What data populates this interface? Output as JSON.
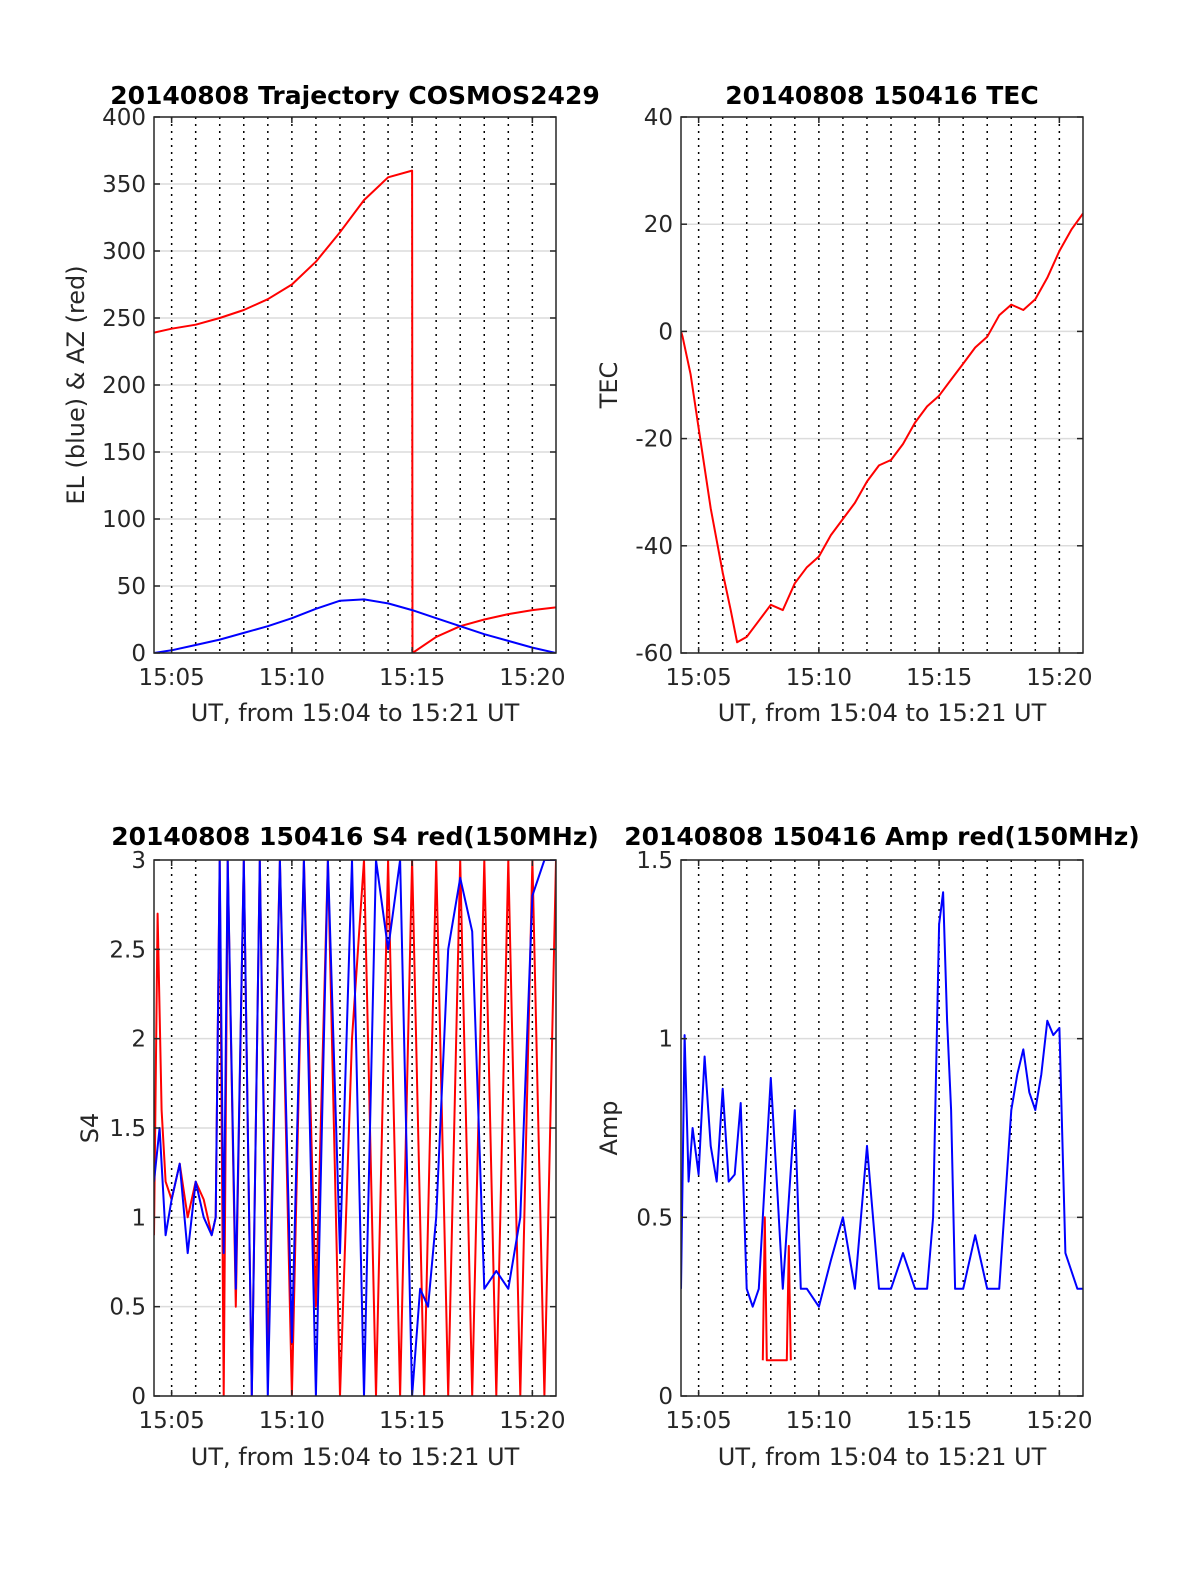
{
  "figure": {
    "background": "#ffffff"
  },
  "colors": {
    "red": "#ff0000",
    "blue": "#0000ff",
    "grid": "#dcdcdc",
    "dotted_grid": "#000000"
  },
  "chart_data": [
    {
      "id": "trajectory",
      "type": "line",
      "title": "20140808 Trajectory COSMOS2429",
      "xlabel": "UT, from 15:04 to 15:21 UT",
      "ylabel": "EL (blue) & AZ (red)",
      "xlim": [
        "15:04:16",
        "15:20:59"
      ],
      "ylim": [
        0,
        400
      ],
      "yticks": [
        "0",
        "50",
        "100",
        "150",
        "200",
        "250",
        "300",
        "350",
        "400"
      ],
      "ytick_values": [
        0,
        50,
        100,
        150,
        200,
        250,
        300,
        350,
        400
      ],
      "xticks": [
        "15:05",
        "15:10",
        "15:15",
        "15:20"
      ],
      "grid": {
        "horizontal": "solid",
        "vertical": "dotted",
        "vertical_every_minutes": 1
      },
      "series": [
        {
          "color": "red",
          "x": [
            "15:04:16",
            "15:05:00",
            "15:06:00",
            "15:07:00",
            "15:08:00",
            "15:09:00",
            "15:10:00",
            "15:11:00",
            "15:12:00",
            "15:13:00",
            "15:14:00",
            "15:15:00",
            "15:15:01",
            "15:16:00",
            "15:17:00",
            "15:18:00",
            "15:19:00",
            "15:20:00",
            "15:20:59"
          ],
          "y": [
            239,
            242,
            245,
            250,
            256,
            264,
            275,
            292,
            314,
            338,
            355,
            360,
            0,
            12,
            20,
            25,
            29,
            32,
            34
          ]
        },
        {
          "color": "blue",
          "x": [
            "15:04:16",
            "15:05:00",
            "15:06:00",
            "15:07:00",
            "15:08:00",
            "15:09:00",
            "15:10:00",
            "15:11:00",
            "15:12:00",
            "15:13:00",
            "15:14:00",
            "15:15:00",
            "15:16:00",
            "15:17:00",
            "15:18:00",
            "15:19:00",
            "15:20:00",
            "15:20:59"
          ],
          "y": [
            0,
            2,
            6,
            10,
            15,
            20,
            26,
            33,
            39,
            40,
            37,
            32,
            26,
            20,
            14,
            9,
            4,
            0
          ]
        }
      ]
    },
    {
      "id": "tec",
      "type": "line",
      "title": "20140808 150416 TEC",
      "xlabel": "UT, from 15:04 to 15:21 UT",
      "ylabel": "TEC",
      "xlim": [
        "15:04:16",
        "15:20:59"
      ],
      "ylim": [
        -60,
        40
      ],
      "yticks": [
        "-60",
        "-40",
        "-20",
        "0",
        "20",
        "40"
      ],
      "ytick_values": [
        -60,
        -40,
        -20,
        0,
        20,
        40
      ],
      "xticks": [
        "15:05",
        "15:10",
        "15:15",
        "15:20"
      ],
      "grid": {
        "horizontal": "solid",
        "vertical": "dotted",
        "vertical_every_minutes": 1
      },
      "series": [
        {
          "color": "red",
          "x": [
            "15:04:16",
            "15:04:20",
            "15:04:40",
            "15:05:00",
            "15:05:30",
            "15:06:00",
            "15:06:20",
            "15:06:36",
            "15:07:00",
            "15:07:30",
            "15:08:00",
            "15:08:30",
            "15:09:00",
            "15:09:30",
            "15:10:00",
            "15:10:30",
            "15:11:00",
            "15:11:30",
            "15:12:00",
            "15:12:30",
            "15:13:00",
            "15:13:30",
            "15:14:00",
            "15:14:30",
            "15:15:00",
            "15:15:30",
            "15:16:00",
            "15:16:30",
            "15:17:00",
            "15:17:30",
            "15:18:00",
            "15:18:30",
            "15:19:00",
            "15:19:30",
            "15:20:00",
            "15:20:30",
            "15:20:59"
          ],
          "y": [
            0,
            -1,
            -8,
            -18,
            -33,
            -45,
            -52,
            -58,
            -57,
            -54,
            -51,
            -52,
            -47,
            -44,
            -42,
            -38,
            -35,
            -32,
            -28,
            -25,
            -24,
            -21,
            -17,
            -14,
            -12,
            -9,
            -6,
            -3,
            -1,
            3,
            5,
            4,
            6,
            10,
            15,
            19,
            22
          ]
        }
      ]
    },
    {
      "id": "s4",
      "type": "line",
      "title": "20140808 150416 S4 red(150MHz)",
      "xlabel": "UT, from 15:04 to 15:21 UT",
      "ylabel": "S4",
      "xlim": [
        "15:04:16",
        "15:20:59"
      ],
      "ylim": [
        0,
        3
      ],
      "yticks": [
        "0",
        "0.5",
        "1",
        "1.5",
        "2",
        "2.5",
        "3"
      ],
      "ytick_values": [
        0,
        0.5,
        1,
        1.5,
        2,
        2.5,
        3
      ],
      "xticks": [
        "15:05",
        "15:10",
        "15:15",
        "15:20"
      ],
      "grid": {
        "horizontal": "solid",
        "vertical": "dotted",
        "vertical_every_minutes": 1
      },
      "series": [
        {
          "color": "red",
          "x": [
            "15:04:16",
            "15:04:25",
            "15:04:35",
            "15:04:45",
            "15:05:00",
            "15:05:20",
            "15:05:40",
            "15:06:00",
            "15:06:20",
            "15:06:40",
            "15:06:50",
            "15:07:00",
            "15:07:10",
            "15:07:20",
            "15:07:40",
            "15:08:00",
            "15:08:20",
            "15:08:40",
            "15:09:00",
            "15:09:30",
            "15:10:00",
            "15:10:30",
            "15:11:00",
            "15:11:30",
            "15:12:00",
            "15:12:30",
            "15:13:00",
            "15:13:30",
            "15:14:00",
            "15:14:30",
            "15:15:00",
            "15:15:30",
            "15:16:00",
            "15:16:30",
            "15:17:00",
            "15:17:30",
            "15:18:00",
            "15:18:30",
            "15:19:00",
            "15:19:30",
            "15:20:00",
            "15:20:30",
            "15:20:59"
          ],
          "y": [
            0.9,
            2.7,
            1.6,
            1.2,
            1.1,
            1.3,
            1.0,
            1.2,
            1.1,
            0.9,
            1.0,
            3.0,
            0.0,
            3.0,
            0.5,
            3.0,
            0.0,
            3.0,
            0.2,
            3.0,
            0.0,
            3.0,
            0.5,
            3.0,
            0.0,
            2.0,
            3.0,
            0.0,
            3.0,
            0.0,
            3.0,
            0.0,
            3.0,
            0.0,
            3.0,
            0.0,
            3.0,
            0.0,
            3.0,
            0.0,
            3.0,
            0.0,
            3.0
          ]
        },
        {
          "color": "blue",
          "x": [
            "15:04:16",
            "15:04:30",
            "15:04:45",
            "15:05:00",
            "15:05:20",
            "15:05:40",
            "15:06:00",
            "15:06:20",
            "15:06:40",
            "15:06:50",
            "15:07:00",
            "15:07:10",
            "15:07:20",
            "15:07:40",
            "15:08:00",
            "15:08:20",
            "15:08:40",
            "15:09:00",
            "15:09:30",
            "15:10:00",
            "15:10:30",
            "15:11:00",
            "15:11:30",
            "15:12:00",
            "15:12:30",
            "15:13:00",
            "15:13:30",
            "15:14:00",
            "15:14:30",
            "15:15:00",
            "15:15:20",
            "15:15:40",
            "15:16:00",
            "15:16:30",
            "15:17:00",
            "15:17:30",
            "15:18:00",
            "15:18:30",
            "15:19:00",
            "15:19:30",
            "15:20:00",
            "15:20:30",
            "15:20:59"
          ],
          "y": [
            1.2,
            1.5,
            0.9,
            1.1,
            1.3,
            0.8,
            1.2,
            1.0,
            0.9,
            1.0,
            3.0,
            0.8,
            3.0,
            0.6,
            3.0,
            0.0,
            3.0,
            0.0,
            3.0,
            0.3,
            3.0,
            0.0,
            3.0,
            0.8,
            3.0,
            0.0,
            3.0,
            2.5,
            3.0,
            0.0,
            0.6,
            0.5,
            1.0,
            2.5,
            2.9,
            2.6,
            0.6,
            0.7,
            0.6,
            1.0,
            2.8,
            3.0,
            3.0
          ]
        }
      ]
    },
    {
      "id": "amp",
      "type": "line",
      "title": "20140808 150416 Amp red(150MHz)",
      "xlabel": "UT, from 15:04 to 15:21 UT",
      "ylabel": "Amp",
      "xlim": [
        "15:04:16",
        "15:20:59"
      ],
      "ylim": [
        0,
        1.5
      ],
      "yticks": [
        "0",
        "0.5",
        "1",
        "1.5"
      ],
      "ytick_values": [
        0,
        0.5,
        1,
        1.5
      ],
      "xticks": [
        "15:05",
        "15:10",
        "15:15",
        "15:20"
      ],
      "grid": {
        "horizontal": "solid",
        "vertical": "dotted",
        "vertical_every_minutes": 1
      },
      "series": [
        {
          "color": "red",
          "x": [
            "15:07:40",
            "15:07:45",
            "15:07:50",
            "15:08:40",
            "15:08:45",
            "15:08:50"
          ],
          "y": [
            0.1,
            0.5,
            0.1,
            0.1,
            0.42,
            0.1
          ]
        },
        {
          "color": "blue",
          "x": [
            "15:04:16",
            "15:04:25",
            "15:04:35",
            "15:04:45",
            "15:05:00",
            "15:05:15",
            "15:05:30",
            "15:05:45",
            "15:06:00",
            "15:06:15",
            "15:06:30",
            "15:06:45",
            "15:07:00",
            "15:07:15",
            "15:07:30",
            "15:07:45",
            "15:08:00",
            "15:08:15",
            "15:08:30",
            "15:08:45",
            "15:09:00",
            "15:09:15",
            "15:09:30",
            "15:10:00",
            "15:10:30",
            "15:11:00",
            "15:11:30",
            "15:12:00",
            "15:12:15",
            "15:12:30",
            "15:13:00",
            "15:13:30",
            "15:14:00",
            "15:14:30",
            "15:14:45",
            "15:15:00",
            "15:15:10",
            "15:15:20",
            "15:15:30",
            "15:15:40",
            "15:15:50",
            "15:16:00",
            "15:16:30",
            "15:17:00",
            "15:17:30",
            "15:18:00",
            "15:18:15",
            "15:18:30",
            "15:18:45",
            "15:19:00",
            "15:19:15",
            "15:19:30",
            "15:19:45",
            "15:20:00",
            "15:20:15",
            "15:20:30",
            "15:20:45",
            "15:20:59"
          ],
          "y": [
            0.3,
            1.01,
            0.6,
            0.75,
            0.62,
            0.95,
            0.7,
            0.6,
            0.86,
            0.6,
            0.62,
            0.82,
            0.3,
            0.25,
            0.3,
            0.6,
            0.89,
            0.6,
            0.3,
            0.55,
            0.8,
            0.3,
            0.3,
            0.25,
            0.38,
            0.5,
            0.3,
            0.7,
            0.5,
            0.3,
            0.3,
            0.4,
            0.3,
            0.3,
            0.5,
            1.32,
            1.41,
            1.05,
            0.8,
            0.3,
            0.3,
            0.3,
            0.45,
            0.3,
            0.3,
            0.8,
            0.9,
            0.97,
            0.85,
            0.8,
            0.9,
            1.05,
            1.01,
            1.03,
            0.4,
            0.35,
            0.3,
            0.3
          ]
        }
      ]
    }
  ]
}
